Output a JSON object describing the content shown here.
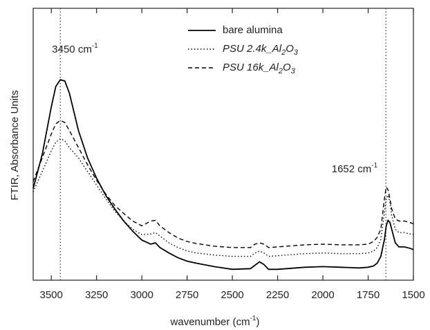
{
  "chart_data": {
    "type": "line",
    "xlabel": "wavenumber (cm-1)",
    "ylabel": "FTIR, Absorbance Units",
    "xlim": [
      3600,
      1500
    ],
    "xticks": [
      3500,
      3250,
      3000,
      2750,
      2500,
      2250,
      2000,
      1750,
      1500
    ],
    "ylim": [
      0,
      400
    ],
    "x": [
      3600,
      3550,
      3500,
      3475,
      3450,
      3425,
      3400,
      3350,
      3300,
      3250,
      3200,
      3150,
      3100,
      3050,
      3000,
      2950,
      2925,
      2900,
      2850,
      2800,
      2750,
      2700,
      2600,
      2500,
      2400,
      2375,
      2350,
      2325,
      2300,
      2250,
      2200,
      2100,
      2000,
      1900,
      1800,
      1750,
      1720,
      1700,
      1680,
      1660,
      1650,
      1640,
      1630,
      1620,
      1600,
      1580,
      1550,
      1520,
      1500
    ],
    "series": [
      {
        "name": "bare alumina",
        "color": "#000000",
        "dash": "solid",
        "font_style": "normal",
        "values": [
          135,
          185,
          255,
          285,
          295,
          293,
          275,
          220,
          180,
          150,
          125,
          105,
          87,
          72,
          59,
          53,
          55,
          48,
          40,
          33,
          28,
          25,
          20,
          16,
          17,
          22,
          27,
          23,
          16,
          16,
          17,
          19,
          20,
          19,
          18,
          19,
          21,
          25,
          35,
          60,
          80,
          88,
          85,
          75,
          55,
          49,
          49,
          47,
          45
        ]
      },
      {
        "name": "PSU 2.4k_Al2O3",
        "color": "#000000",
        "dash": "dotted",
        "font_style": "italic",
        "values": [
          130,
          160,
          190,
          203,
          208,
          205,
          195,
          180,
          160,
          140,
          120,
          102,
          87,
          75,
          67,
          68,
          70,
          65,
          55,
          48,
          43,
          40,
          37,
          35,
          35,
          40,
          43,
          40,
          35,
          36,
          37,
          39,
          40,
          39,
          39,
          40,
          43,
          48,
          60,
          100,
          120,
          125,
          115,
          95,
          75,
          70,
          70,
          68,
          67
        ]
      },
      {
        "name": "PSU 16k_Al2O3",
        "color": "#000000",
        "dash": "dashed",
        "font_style": "italic",
        "values": [
          145,
          180,
          215,
          230,
          235,
          232,
          220,
          195,
          170,
          147,
          127,
          110,
          98,
          87,
          80,
          87,
          88,
          80,
          70,
          62,
          57,
          54,
          50,
          48,
          48,
          53,
          55,
          53,
          48,
          49,
          50,
          52,
          53,
          52,
          52,
          53,
          57,
          63,
          75,
          120,
          137,
          133,
          120,
          105,
          90,
          87,
          87,
          85,
          83
        ]
      }
    ],
    "vlines": [
      3450,
      1652
    ],
    "annotations": [
      "3450 cm-1",
      "1652 cm-1"
    ]
  }
}
